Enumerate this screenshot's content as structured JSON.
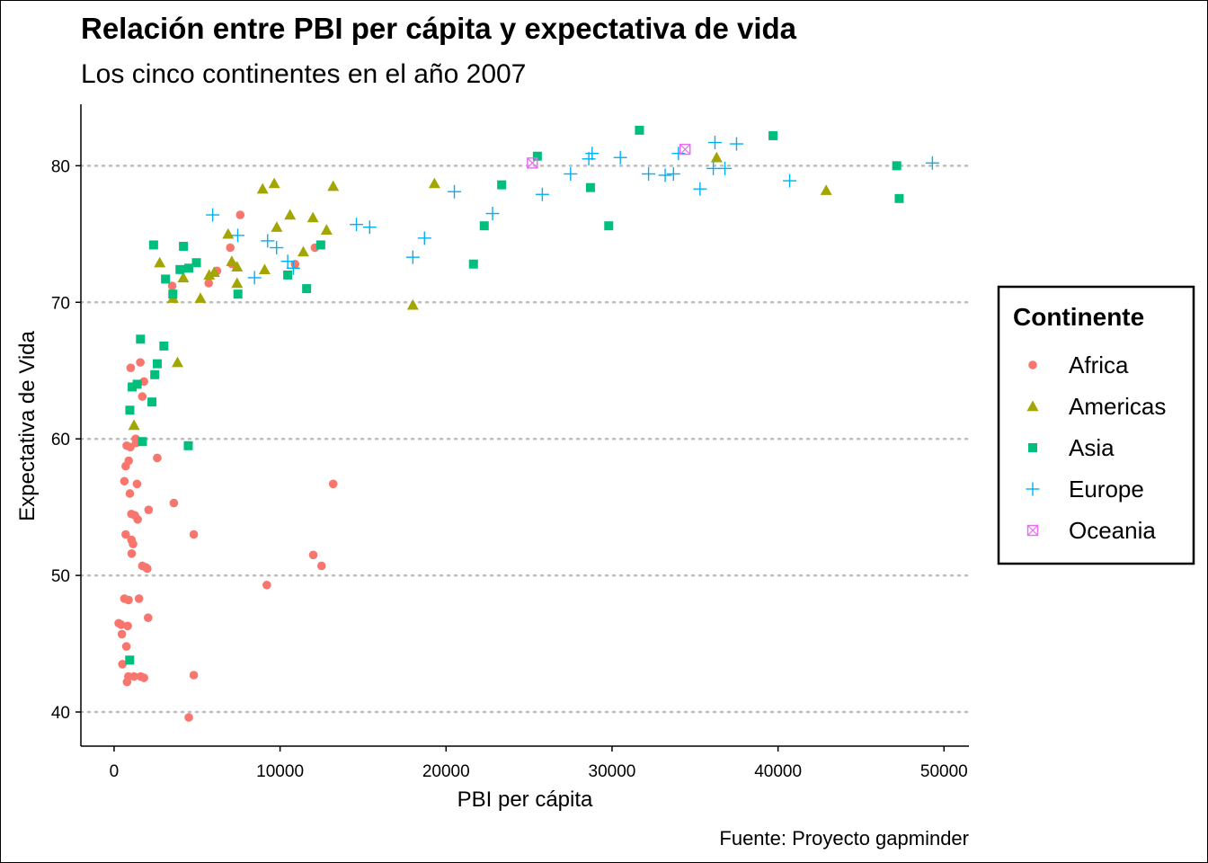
{
  "chart_data": {
    "type": "scatter",
    "title": "Relación entre PBI per cápita y expectativa de vida",
    "subtitle": "Los cinco continentes en el año 2007",
    "xlabel": "PBI per cápita",
    "ylabel": "Expectativa de Vida",
    "caption": "Fuente: Proyecto gapminder",
    "xlim": [
      -2000,
      51500
    ],
    "ylim": [
      37.5,
      84.5
    ],
    "x_ticks": [
      0,
      10000,
      20000,
      30000,
      40000,
      50000
    ],
    "x_tick_labels": [
      "0",
      "10000",
      "20000",
      "30000",
      "40000",
      "50000"
    ],
    "y_ticks": [
      40,
      50,
      60,
      70,
      80
    ],
    "y_tick_labels": [
      "40",
      "50",
      "60",
      "70",
      "80"
    ],
    "grid": "horizontal-major-dotted",
    "legend": {
      "title": "Continente",
      "position": "right"
    },
    "series": [
      {
        "name": "Africa",
        "color": "#F8766D",
        "shape": "circle",
        "points": [
          [
            278,
            46.5
          ],
          [
            420,
            46.4
          ],
          [
            470,
            45.7
          ],
          [
            500,
            43.5
          ],
          [
            620,
            48.3
          ],
          [
            620,
            56.9
          ],
          [
            700,
            58.0
          ],
          [
            700,
            53.0
          ],
          [
            740,
            44.8
          ],
          [
            760,
            59.5
          ],
          [
            780,
            42.2
          ],
          [
            820,
            46.3
          ],
          [
            860,
            42.6
          ],
          [
            870,
            48.2
          ],
          [
            880,
            58.4
          ],
          [
            950,
            56.0
          ],
          [
            980,
            59.4
          ],
          [
            1000,
            65.2
          ],
          [
            1040,
            54.5
          ],
          [
            1050,
            52.6
          ],
          [
            1060,
            51.6
          ],
          [
            1140,
            52.3
          ],
          [
            1200,
            42.6
          ],
          [
            1250,
            54.4
          ],
          [
            1300,
            60.0
          ],
          [
            1330,
            59.7
          ],
          [
            1380,
            56.7
          ],
          [
            1420,
            54.1
          ],
          [
            1500,
            48.3
          ],
          [
            1580,
            65.6
          ],
          [
            1600,
            42.6
          ],
          [
            1700,
            50.7
          ],
          [
            1700,
            63.1
          ],
          [
            1800,
            64.2
          ],
          [
            1900,
            50.6
          ],
          [
            2000,
            50.5
          ],
          [
            2050,
            46.9
          ],
          [
            2080,
            54.8
          ],
          [
            2600,
            58.6
          ],
          [
            3500,
            71.2
          ],
          [
            3600,
            55.3
          ],
          [
            4500,
            39.6
          ],
          [
            4800,
            42.7
          ],
          [
            4800,
            53.0
          ],
          [
            5700,
            71.4
          ],
          [
            6200,
            72.3
          ],
          [
            7000,
            74.0
          ],
          [
            7100,
            72.8
          ],
          [
            7600,
            76.4
          ],
          [
            9200,
            49.3
          ],
          [
            10900,
            72.8
          ],
          [
            12000,
            51.5
          ],
          [
            12100,
            74.0
          ],
          [
            12500,
            50.7
          ],
          [
            13200,
            56.7
          ],
          [
            1800,
            42.5
          ]
        ]
      },
      {
        "name": "Americas",
        "color": "#A3A500",
        "shape": "triangle",
        "points": [
          [
            1200,
            61.0
          ],
          [
            2750,
            72.9
          ],
          [
            3550,
            70.3
          ],
          [
            3820,
            65.6
          ],
          [
            4170,
            71.8
          ],
          [
            5200,
            70.3
          ],
          [
            5730,
            72.0
          ],
          [
            6030,
            72.2
          ],
          [
            6870,
            75.0
          ],
          [
            7090,
            73.0
          ],
          [
            7410,
            72.6
          ],
          [
            7410,
            71.4
          ],
          [
            8950,
            78.3
          ],
          [
            9070,
            72.4
          ],
          [
            9650,
            78.7
          ],
          [
            9800,
            75.5
          ],
          [
            10600,
            76.4
          ],
          [
            11400,
            73.7
          ],
          [
            11980,
            76.2
          ],
          [
            12800,
            75.3
          ],
          [
            13200,
            78.5
          ],
          [
            18000,
            69.8
          ],
          [
            19300,
            78.7
          ],
          [
            36300,
            80.6
          ],
          [
            42900,
            78.2
          ]
        ]
      },
      {
        "name": "Asia",
        "color": "#00BF7D",
        "shape": "square",
        "points": [
          [
            940,
            43.8
          ],
          [
            950,
            62.1
          ],
          [
            1090,
            63.8
          ],
          [
            1390,
            64.0
          ],
          [
            1590,
            67.3
          ],
          [
            1710,
            59.8
          ],
          [
            2280,
            62.7
          ],
          [
            2380,
            74.2
          ],
          [
            2450,
            64.7
          ],
          [
            2600,
            65.5
          ],
          [
            3000,
            66.8
          ],
          [
            3100,
            71.7
          ],
          [
            3540,
            70.6
          ],
          [
            3970,
            72.4
          ],
          [
            4180,
            74.1
          ],
          [
            4470,
            59.5
          ],
          [
            4500,
            72.5
          ],
          [
            4960,
            72.9
          ],
          [
            7460,
            70.6
          ],
          [
            10460,
            72.0
          ],
          [
            11600,
            71.0
          ],
          [
            12450,
            74.2
          ],
          [
            21650,
            72.8
          ],
          [
            22300,
            75.6
          ],
          [
            23350,
            78.6
          ],
          [
            25500,
            80.7
          ],
          [
            28700,
            78.4
          ],
          [
            29800,
            75.6
          ],
          [
            31650,
            82.6
          ],
          [
            39700,
            82.2
          ],
          [
            47150,
            80.0
          ],
          [
            47300,
            77.6
          ]
        ]
      },
      {
        "name": "Europe",
        "color": "#00B0F6",
        "shape": "plus",
        "points": [
          [
            5940,
            76.4
          ],
          [
            7450,
            74.9
          ],
          [
            8460,
            71.8
          ],
          [
            9250,
            74.5
          ],
          [
            9790,
            74.0
          ],
          [
            10460,
            73.0
          ],
          [
            10800,
            72.5
          ],
          [
            14600,
            75.7
          ],
          [
            15400,
            75.5
          ],
          [
            18000,
            73.3
          ],
          [
            18700,
            74.7
          ],
          [
            20500,
            78.1
          ],
          [
            22800,
            76.5
          ],
          [
            25800,
            77.9
          ],
          [
            27500,
            79.4
          ],
          [
            28600,
            80.5
          ],
          [
            28800,
            80.9
          ],
          [
            30500,
            80.6
          ],
          [
            32200,
            79.4
          ],
          [
            33200,
            79.3
          ],
          [
            33700,
            79.4
          ],
          [
            34000,
            80.9
          ],
          [
            35300,
            78.3
          ],
          [
            36100,
            79.8
          ],
          [
            36200,
            81.7
          ],
          [
            36800,
            79.8
          ],
          [
            37500,
            81.6
          ],
          [
            40700,
            78.9
          ],
          [
            49300,
            80.2
          ]
        ]
      },
      {
        "name": "Oceania",
        "color": "#E76BF3",
        "shape": "square-x",
        "points": [
          [
            25200,
            80.2
          ],
          [
            34400,
            81.2
          ]
        ]
      }
    ]
  }
}
